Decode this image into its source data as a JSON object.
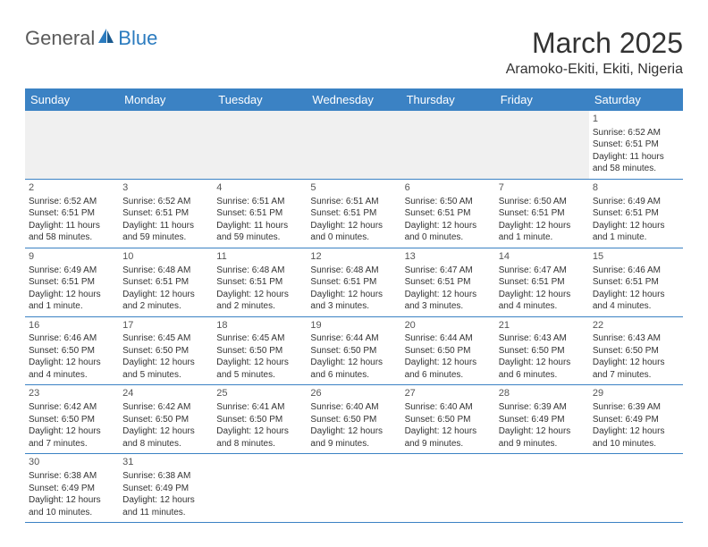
{
  "logo": {
    "text_general": "General",
    "text_blue": "Blue"
  },
  "title": "March 2025",
  "location": "Aramoko-Ekiti, Ekiti, Nigeria",
  "colors": {
    "header_bg": "#3b82c4",
    "header_text": "#ffffff",
    "border": "#3b82c4",
    "logo_gray": "#5a5a5a",
    "logo_blue": "#2b7bbf"
  },
  "day_headers": [
    "Sunday",
    "Monday",
    "Tuesday",
    "Wednesday",
    "Thursday",
    "Friday",
    "Saturday"
  ],
  "weeks": [
    [
      {
        "day": "",
        "sunrise": "",
        "sunset": "",
        "daylight": ""
      },
      {
        "day": "",
        "sunrise": "",
        "sunset": "",
        "daylight": ""
      },
      {
        "day": "",
        "sunrise": "",
        "sunset": "",
        "daylight": ""
      },
      {
        "day": "",
        "sunrise": "",
        "sunset": "",
        "daylight": ""
      },
      {
        "day": "",
        "sunrise": "",
        "sunset": "",
        "daylight": ""
      },
      {
        "day": "",
        "sunrise": "",
        "sunset": "",
        "daylight": ""
      },
      {
        "day": "1",
        "sunrise": "Sunrise: 6:52 AM",
        "sunset": "Sunset: 6:51 PM",
        "daylight": "Daylight: 11 hours and 58 minutes."
      }
    ],
    [
      {
        "day": "2",
        "sunrise": "Sunrise: 6:52 AM",
        "sunset": "Sunset: 6:51 PM",
        "daylight": "Daylight: 11 hours and 58 minutes."
      },
      {
        "day": "3",
        "sunrise": "Sunrise: 6:52 AM",
        "sunset": "Sunset: 6:51 PM",
        "daylight": "Daylight: 11 hours and 59 minutes."
      },
      {
        "day": "4",
        "sunrise": "Sunrise: 6:51 AM",
        "sunset": "Sunset: 6:51 PM",
        "daylight": "Daylight: 11 hours and 59 minutes."
      },
      {
        "day": "5",
        "sunrise": "Sunrise: 6:51 AM",
        "sunset": "Sunset: 6:51 PM",
        "daylight": "Daylight: 12 hours and 0 minutes."
      },
      {
        "day": "6",
        "sunrise": "Sunrise: 6:50 AM",
        "sunset": "Sunset: 6:51 PM",
        "daylight": "Daylight: 12 hours and 0 minutes."
      },
      {
        "day": "7",
        "sunrise": "Sunrise: 6:50 AM",
        "sunset": "Sunset: 6:51 PM",
        "daylight": "Daylight: 12 hours and 1 minute."
      },
      {
        "day": "8",
        "sunrise": "Sunrise: 6:49 AM",
        "sunset": "Sunset: 6:51 PM",
        "daylight": "Daylight: 12 hours and 1 minute."
      }
    ],
    [
      {
        "day": "9",
        "sunrise": "Sunrise: 6:49 AM",
        "sunset": "Sunset: 6:51 PM",
        "daylight": "Daylight: 12 hours and 1 minute."
      },
      {
        "day": "10",
        "sunrise": "Sunrise: 6:48 AM",
        "sunset": "Sunset: 6:51 PM",
        "daylight": "Daylight: 12 hours and 2 minutes."
      },
      {
        "day": "11",
        "sunrise": "Sunrise: 6:48 AM",
        "sunset": "Sunset: 6:51 PM",
        "daylight": "Daylight: 12 hours and 2 minutes."
      },
      {
        "day": "12",
        "sunrise": "Sunrise: 6:48 AM",
        "sunset": "Sunset: 6:51 PM",
        "daylight": "Daylight: 12 hours and 3 minutes."
      },
      {
        "day": "13",
        "sunrise": "Sunrise: 6:47 AM",
        "sunset": "Sunset: 6:51 PM",
        "daylight": "Daylight: 12 hours and 3 minutes."
      },
      {
        "day": "14",
        "sunrise": "Sunrise: 6:47 AM",
        "sunset": "Sunset: 6:51 PM",
        "daylight": "Daylight: 12 hours and 4 minutes."
      },
      {
        "day": "15",
        "sunrise": "Sunrise: 6:46 AM",
        "sunset": "Sunset: 6:51 PM",
        "daylight": "Daylight: 12 hours and 4 minutes."
      }
    ],
    [
      {
        "day": "16",
        "sunrise": "Sunrise: 6:46 AM",
        "sunset": "Sunset: 6:50 PM",
        "daylight": "Daylight: 12 hours and 4 minutes."
      },
      {
        "day": "17",
        "sunrise": "Sunrise: 6:45 AM",
        "sunset": "Sunset: 6:50 PM",
        "daylight": "Daylight: 12 hours and 5 minutes."
      },
      {
        "day": "18",
        "sunrise": "Sunrise: 6:45 AM",
        "sunset": "Sunset: 6:50 PM",
        "daylight": "Daylight: 12 hours and 5 minutes."
      },
      {
        "day": "19",
        "sunrise": "Sunrise: 6:44 AM",
        "sunset": "Sunset: 6:50 PM",
        "daylight": "Daylight: 12 hours and 6 minutes."
      },
      {
        "day": "20",
        "sunrise": "Sunrise: 6:44 AM",
        "sunset": "Sunset: 6:50 PM",
        "daylight": "Daylight: 12 hours and 6 minutes."
      },
      {
        "day": "21",
        "sunrise": "Sunrise: 6:43 AM",
        "sunset": "Sunset: 6:50 PM",
        "daylight": "Daylight: 12 hours and 6 minutes."
      },
      {
        "day": "22",
        "sunrise": "Sunrise: 6:43 AM",
        "sunset": "Sunset: 6:50 PM",
        "daylight": "Daylight: 12 hours and 7 minutes."
      }
    ],
    [
      {
        "day": "23",
        "sunrise": "Sunrise: 6:42 AM",
        "sunset": "Sunset: 6:50 PM",
        "daylight": "Daylight: 12 hours and 7 minutes."
      },
      {
        "day": "24",
        "sunrise": "Sunrise: 6:42 AM",
        "sunset": "Sunset: 6:50 PM",
        "daylight": "Daylight: 12 hours and 8 minutes."
      },
      {
        "day": "25",
        "sunrise": "Sunrise: 6:41 AM",
        "sunset": "Sunset: 6:50 PM",
        "daylight": "Daylight: 12 hours and 8 minutes."
      },
      {
        "day": "26",
        "sunrise": "Sunrise: 6:40 AM",
        "sunset": "Sunset: 6:50 PM",
        "daylight": "Daylight: 12 hours and 9 minutes."
      },
      {
        "day": "27",
        "sunrise": "Sunrise: 6:40 AM",
        "sunset": "Sunset: 6:50 PM",
        "daylight": "Daylight: 12 hours and 9 minutes."
      },
      {
        "day": "28",
        "sunrise": "Sunrise: 6:39 AM",
        "sunset": "Sunset: 6:49 PM",
        "daylight": "Daylight: 12 hours and 9 minutes."
      },
      {
        "day": "29",
        "sunrise": "Sunrise: 6:39 AM",
        "sunset": "Sunset: 6:49 PM",
        "daylight": "Daylight: 12 hours and 10 minutes."
      }
    ],
    [
      {
        "day": "30",
        "sunrise": "Sunrise: 6:38 AM",
        "sunset": "Sunset: 6:49 PM",
        "daylight": "Daylight: 12 hours and 10 minutes."
      },
      {
        "day": "31",
        "sunrise": "Sunrise: 6:38 AM",
        "sunset": "Sunset: 6:49 PM",
        "daylight": "Daylight: 12 hours and 11 minutes."
      },
      {
        "day": "",
        "sunrise": "",
        "sunset": "",
        "daylight": ""
      },
      {
        "day": "",
        "sunrise": "",
        "sunset": "",
        "daylight": ""
      },
      {
        "day": "",
        "sunrise": "",
        "sunset": "",
        "daylight": ""
      },
      {
        "day": "",
        "sunrise": "",
        "sunset": "",
        "daylight": ""
      },
      {
        "day": "",
        "sunrise": "",
        "sunset": "",
        "daylight": ""
      }
    ]
  ]
}
